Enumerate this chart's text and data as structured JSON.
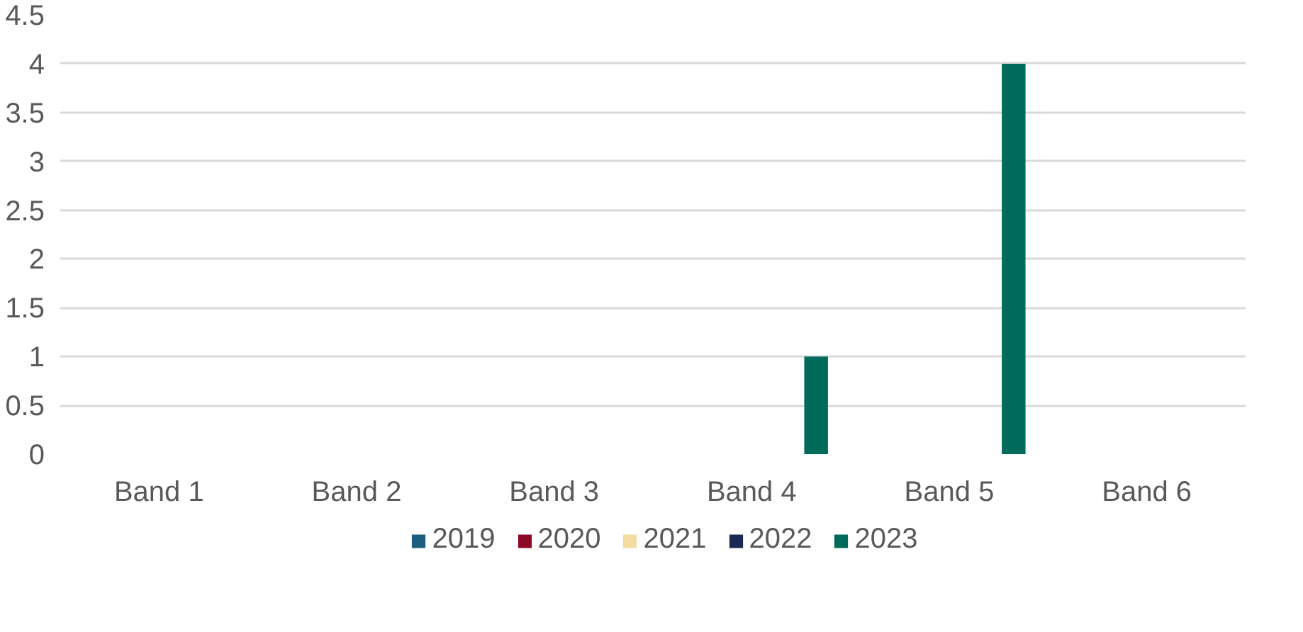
{
  "chart_data": {
    "type": "bar",
    "categories": [
      "Band 1",
      "Band 2",
      "Band 3",
      "Band 4",
      "Band 5",
      "Band 6"
    ],
    "series": [
      {
        "name": "2019",
        "color": "#1b5e7e",
        "values": [
          0,
          0,
          0,
          0,
          0,
          0
        ]
      },
      {
        "name": "2020",
        "color": "#8c0a28",
        "values": [
          0,
          0,
          0,
          0,
          0,
          0
        ]
      },
      {
        "name": "2021",
        "color": "#f2dca0",
        "values": [
          0,
          0,
          0,
          0,
          0,
          0
        ]
      },
      {
        "name": "2022",
        "color": "#1a2a52",
        "values": [
          0,
          0,
          0,
          0,
          0,
          0
        ]
      },
      {
        "name": "2023",
        "color": "#006b5b",
        "values": [
          0,
          0,
          0,
          1,
          4,
          0
        ]
      }
    ],
    "ylim": [
      0,
      4.5
    ],
    "yticks": [
      0,
      0.5,
      1,
      1.5,
      2,
      2.5,
      3,
      3.5,
      4,
      4.5
    ],
    "grid": "y",
    "legend": "bottom"
  }
}
